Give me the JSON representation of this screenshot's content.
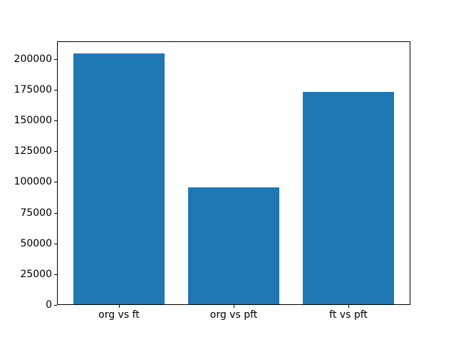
{
  "figure": {
    "background": "#ffffff"
  },
  "chart_data": {
    "type": "bar",
    "title": "",
    "xlabel": "",
    "ylabel": "",
    "categories": [
      "org vs ft",
      "org vs pft",
      "ft vs pft"
    ],
    "values": [
      204500,
      95400,
      173000
    ],
    "ylim": [
      0,
      214400
    ],
    "yticks": [
      0,
      25000,
      50000,
      75000,
      100000,
      125000,
      150000,
      175000,
      200000
    ],
    "ytick_labels": [
      "0",
      "25000",
      "50000",
      "75000",
      "100000",
      "125000",
      "150000",
      "175000",
      "200000"
    ],
    "bar_color": "#1f77b4",
    "axis_color": "#000000",
    "grid": false,
    "legend_position": "none",
    "bar_width_fraction": 0.8
  }
}
